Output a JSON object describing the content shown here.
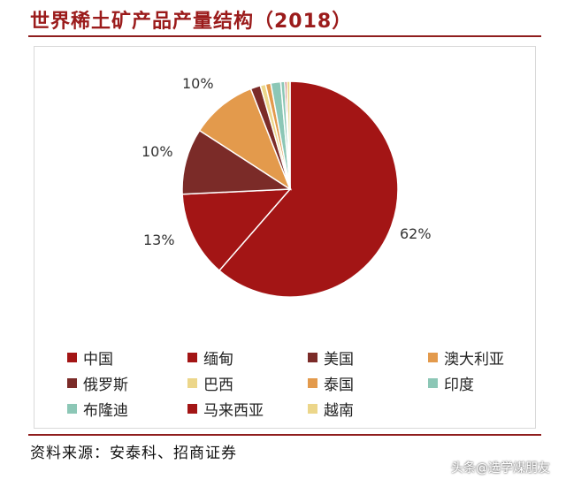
{
  "title": "世界稀土矿产品产量结构（2018）",
  "source": "资料来源：安泰科、招商证券",
  "watermark": "头条@选学煤朋友",
  "chart_data": {
    "type": "pie",
    "title": "世界稀土矿产品产量结构（2018）",
    "start": "12 o'clock",
    "direction": "clockwise",
    "legend_position": "bottom",
    "slices": [
      {
        "name": "中国",
        "value": 62,
        "label": "62%",
        "color": "#a31515"
      },
      {
        "name": "缅甸",
        "value": 13,
        "label": "13%",
        "color": "#a31515"
      },
      {
        "name": "美国",
        "value": 10,
        "label": "10%",
        "color": "#7b2b28"
      },
      {
        "name": "澳大利亚",
        "value": 10,
        "label": "10%",
        "color": "#e39a4c"
      },
      {
        "name": "俄罗斯",
        "value": 1.5,
        "label": "",
        "color": "#7b2b28"
      },
      {
        "name": "巴西",
        "value": 0.8,
        "label": "",
        "color": "#ecd68a"
      },
      {
        "name": "泰国",
        "value": 0.8,
        "label": "",
        "color": "#e39a4c"
      },
      {
        "name": "印度",
        "value": 1.5,
        "label": "",
        "color": "#8cc7b6"
      },
      {
        "name": "布隆迪",
        "value": 0.6,
        "label": "",
        "color": "#8cc7b6"
      },
      {
        "name": "马来西亚",
        "value": 0.3,
        "label": "",
        "color": "#a31515"
      },
      {
        "name": "越南",
        "value": 0.5,
        "label": "",
        "color": "#ecd68a"
      }
    ]
  }
}
